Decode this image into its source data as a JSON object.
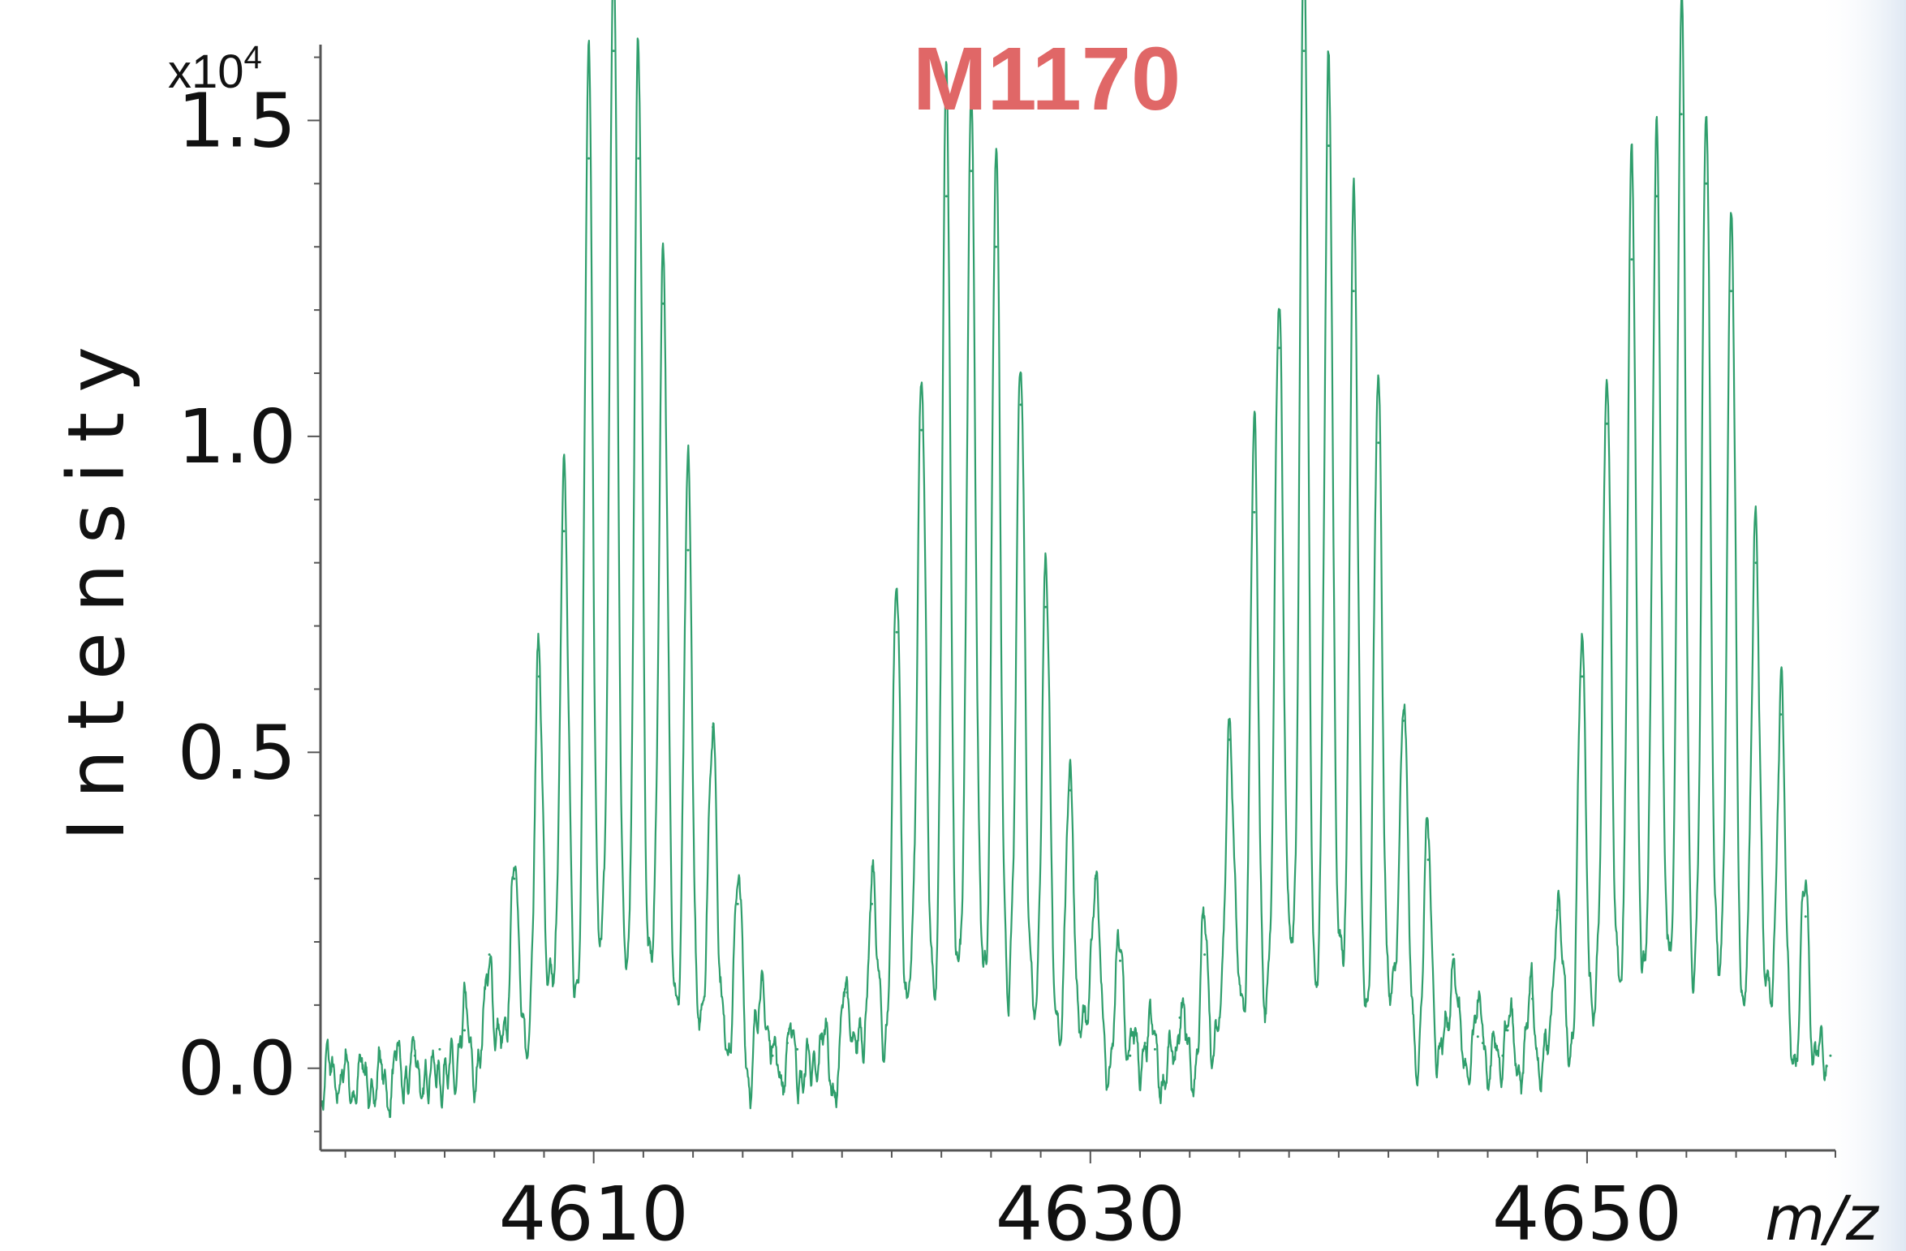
{
  "chart_data": {
    "type": "line",
    "title": "M1170",
    "title_color": "#e06767",
    "line_color": "#2f9e6c",
    "xlabel": "m/z",
    "ylabel": "Intensity",
    "y_scale_note": "x10",
    "y_scale_exponent": "4",
    "xlim": [
      4599,
      4660
    ],
    "ylim": [
      -0.13,
      1.62
    ],
    "x_ticks": [
      4610,
      4630,
      4650
    ],
    "x_tick_labels": [
      "4610",
      "4630",
      "4650"
    ],
    "y_ticks": [
      0.0,
      0.5,
      1.0,
      1.5
    ],
    "y_tick_labels": [
      "0.0",
      "0.5",
      "1.0",
      "1.5"
    ],
    "x_minor_step": 2,
    "y_minor_step": 0.1,
    "grid": false,
    "series": [
      {
        "peak_clusters": [
          {
            "x": [
              4602.8,
              4603.8,
              4604.8,
              4605.8,
              4606.8,
              4607.8,
              4608.8,
              4609.8,
              4610.8,
              4611.8,
              4612.8,
              4613.8,
              4614.8,
              4615.8,
              4616.8,
              4617.8
            ],
            "y": [
              0.02,
              0.03,
              0.06,
              0.18,
              0.3,
              0.62,
              0.85,
              1.44,
              1.61,
              1.44,
              1.21,
              0.82,
              0.54,
              0.26,
              0.14,
              0.04
            ]
          },
          {
            "x": [
              4617.2,
              4618.2,
              4619.2,
              4620.2,
              4621.2,
              4622.2,
              4623.2,
              4624.2,
              4625.2,
              4626.2,
              4627.2,
              4628.2,
              4629.2,
              4630.2,
              4631.2,
              4632.2
            ],
            "y": [
              0.02,
              0.03,
              0.05,
              0.12,
              0.26,
              0.69,
              1.01,
              1.38,
              1.42,
              1.3,
              1.05,
              0.73,
              0.44,
              0.3,
              0.17,
              0.04
            ]
          },
          {
            "x": [
              4631.6,
              4632.6,
              4633.6,
              4634.6,
              4635.6,
              4636.6,
              4637.6,
              4638.6,
              4639.6,
              4640.6,
              4641.6,
              4642.6,
              4643.6,
              4644.6,
              4645.6,
              4646.6
            ],
            "y": [
              0.02,
              0.03,
              0.08,
              0.18,
              0.52,
              0.88,
              1.14,
              1.61,
              1.46,
              1.23,
              0.99,
              0.55,
              0.33,
              0.18,
              0.05,
              0.02
            ]
          },
          {
            "x": [
              4645.8,
              4646.8,
              4647.8,
              4648.8,
              4649.8,
              4650.8,
              4651.8,
              4652.8,
              4653.8,
              4654.8,
              4655.8,
              4656.8,
              4657.8,
              4658.8,
              4659.8
            ],
            "y": [
              0.04,
              0.06,
              0.11,
              0.25,
              0.62,
              1.02,
              1.28,
              1.38,
              1.51,
              1.4,
              1.23,
              0.8,
              0.56,
              0.24,
              0.02
            ]
          }
        ]
      }
    ]
  }
}
